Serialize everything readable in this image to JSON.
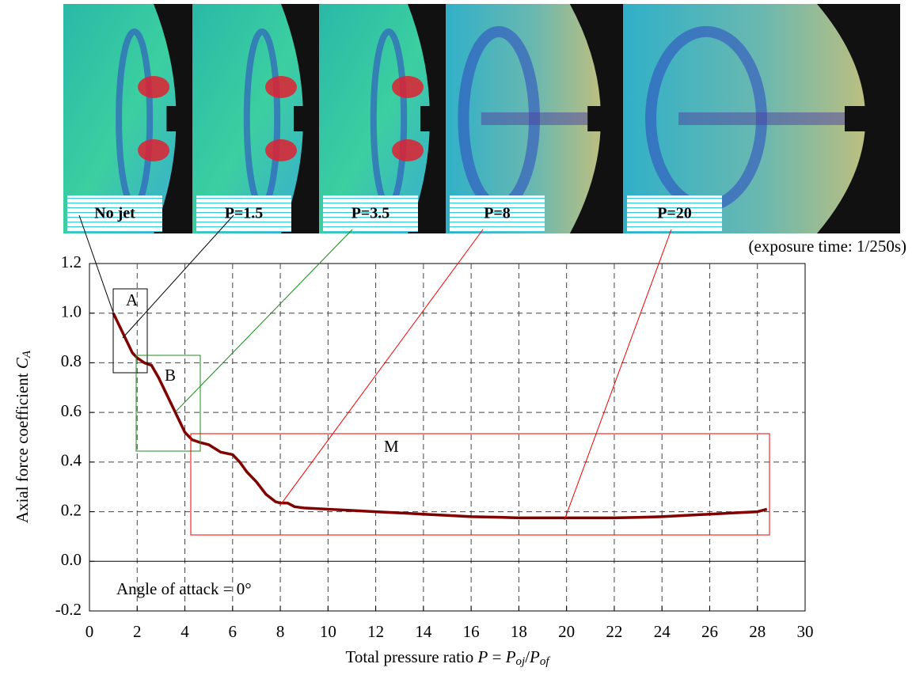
{
  "chart_data": {
    "type": "line",
    "ylabel": {
      "text": "Axial force coefficient",
      "symbol": "C",
      "sub": "A"
    },
    "xlabel": {
      "text": "Total pressure ratio",
      "symbol": "P",
      "eq": "=",
      "num": "P",
      "num_sub": "oj",
      "den": "P",
      "den_sub": "of"
    },
    "x": [
      1.0,
      1.2,
      1.5,
      1.8,
      2.0,
      2.3,
      2.6,
      2.9,
      3.2,
      3.5,
      3.8,
      4.0,
      4.3,
      4.6,
      5.0,
      5.5,
      6.0,
      6.3,
      6.6,
      7.0,
      7.4,
      7.8,
      8.0,
      8.3,
      8.6,
      9.0,
      10,
      11,
      12,
      13,
      14,
      15,
      16,
      17,
      18,
      19,
      20,
      21,
      22,
      23,
      24,
      25,
      26,
      27,
      28,
      28.4
    ],
    "values": [
      1.0,
      0.96,
      0.9,
      0.84,
      0.82,
      0.8,
      0.79,
      0.74,
      0.68,
      0.62,
      0.56,
      0.52,
      0.49,
      0.48,
      0.47,
      0.44,
      0.43,
      0.4,
      0.36,
      0.32,
      0.27,
      0.24,
      0.235,
      0.235,
      0.22,
      0.215,
      0.21,
      0.205,
      0.2,
      0.195,
      0.19,
      0.185,
      0.18,
      0.178,
      0.175,
      0.175,
      0.175,
      0.175,
      0.175,
      0.177,
      0.18,
      0.185,
      0.19,
      0.195,
      0.2,
      0.21
    ],
    "color": "#800000",
    "xlim": [
      0,
      30
    ],
    "xticks": [
      0,
      2,
      4,
      6,
      8,
      10,
      12,
      14,
      16,
      18,
      20,
      22,
      24,
      26,
      28,
      30
    ],
    "ylim": [
      -0.2,
      1.2
    ],
    "yticks": [
      -0.2,
      {
        "value": 0,
        "label": "0.0"
      },
      0.2,
      0.4,
      0.6,
      0.8,
      {
        "value": 1,
        "label": "1.0"
      },
      1.2
    ],
    "grid": true,
    "regions": [
      "A",
      "B",
      "M"
    ],
    "annotation": "Angle of attack = 0°",
    "photo_labels": [
      "No jet",
      "P=1.5",
      "P=3.5",
      "P=8",
      "P=20"
    ],
    "photo_note": "(exposure time: 1/250s)"
  }
}
